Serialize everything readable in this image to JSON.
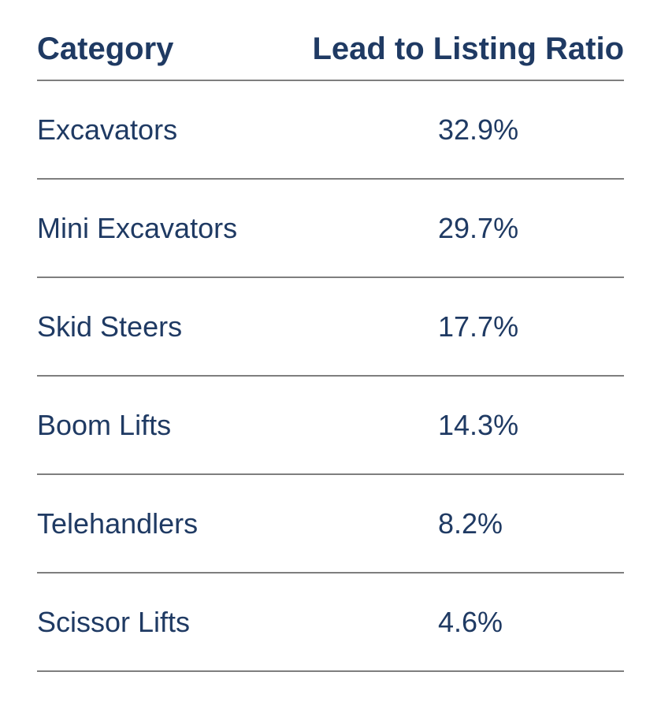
{
  "table": {
    "columns": [
      "Category",
      "Lead to Listing Ratio"
    ],
    "rows": [
      {
        "category": "Excavators",
        "ratio": "32.9%"
      },
      {
        "category": "Mini Excavators",
        "ratio": "29.7%"
      },
      {
        "category": "Skid Steers",
        "ratio": "17.7%"
      },
      {
        "category": "Boom Lifts",
        "ratio": "14.3%"
      },
      {
        "category": "Telehandlers",
        "ratio": "8.2%"
      },
      {
        "category": "Scissor Lifts",
        "ratio": "4.6%"
      }
    ]
  },
  "chart_data": {
    "type": "table",
    "columns": [
      "Category",
      "Lead to Listing Ratio"
    ],
    "categories": [
      "Excavators",
      "Mini Excavators",
      "Skid Steers",
      "Boom Lifts",
      "Telehandlers",
      "Scissor Lifts"
    ],
    "values_percent": [
      32.9,
      29.7,
      17.7,
      14.3,
      8.2,
      4.6
    ]
  },
  "colors": {
    "text": "#1f3a63",
    "divider": "#7e7e7e",
    "background": "#ffffff"
  }
}
